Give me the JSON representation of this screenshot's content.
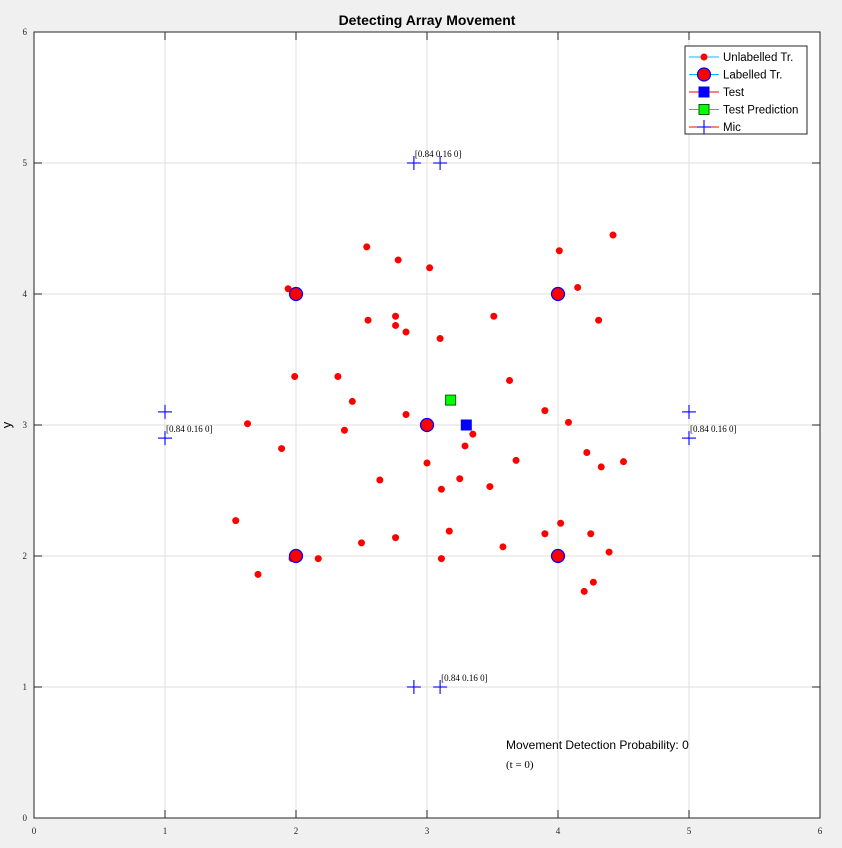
{
  "chart_data": {
    "type": "scatter",
    "title": "Detecting Array Movement",
    "xlabel": "",
    "ylabel": "y",
    "xlim": [
      0,
      6
    ],
    "ylim": [
      0,
      6
    ],
    "xticks": [
      0,
      1,
      2,
      3,
      4,
      5,
      6
    ],
    "yticks": [
      0,
      1,
      2,
      3,
      4,
      5,
      6
    ],
    "grid": true,
    "legend_position": "top-right",
    "series": [
      {
        "name": "Unlabelled Tr.",
        "color": "#ff0000",
        "marker": "dot",
        "points": [
          [
            4.42,
            4.45
          ],
          [
            2.54,
            4.36
          ],
          [
            4.01,
            4.33
          ],
          [
            2.78,
            4.26
          ],
          [
            3.02,
            4.2
          ],
          [
            4.15,
            4.05
          ],
          [
            1.94,
            4.04
          ],
          [
            3.51,
            3.83
          ],
          [
            2.76,
            3.83
          ],
          [
            2.55,
            3.8
          ],
          [
            4.31,
            3.8
          ],
          [
            2.76,
            3.76
          ],
          [
            2.84,
            3.71
          ],
          [
            3.1,
            3.66
          ],
          [
            1.99,
            3.37
          ],
          [
            2.32,
            3.37
          ],
          [
            3.63,
            3.34
          ],
          [
            2.43,
            3.18
          ],
          [
            3.9,
            3.11
          ],
          [
            2.84,
            3.08
          ],
          [
            4.08,
            3.02
          ],
          [
            1.63,
            3.01
          ],
          [
            2.37,
            2.96
          ],
          [
            3.35,
            2.93
          ],
          [
            3.29,
            2.84
          ],
          [
            1.89,
            2.82
          ],
          [
            4.22,
            2.79
          ],
          [
            3.68,
            2.73
          ],
          [
            4.5,
            2.72
          ],
          [
            3.0,
            2.71
          ],
          [
            4.33,
            2.68
          ],
          [
            2.64,
            2.58
          ],
          [
            3.25,
            2.59
          ],
          [
            3.11,
            2.51
          ],
          [
            3.48,
            2.53
          ],
          [
            1.54,
            2.27
          ],
          [
            4.02,
            2.25
          ],
          [
            3.17,
            2.19
          ],
          [
            3.9,
            2.17
          ],
          [
            4.25,
            2.17
          ],
          [
            2.76,
            2.14
          ],
          [
            2.5,
            2.1
          ],
          [
            3.58,
            2.07
          ],
          [
            4.39,
            2.03
          ],
          [
            1.97,
            1.98
          ],
          [
            2.17,
            1.98
          ],
          [
            3.11,
            1.98
          ],
          [
            1.71,
            1.86
          ],
          [
            4.27,
            1.8
          ],
          [
            4.2,
            1.73
          ]
        ]
      },
      {
        "name": "Labelled Tr.",
        "color": "#ff0000",
        "edge": "#0000ff",
        "marker": "circle",
        "points": [
          [
            2,
            4
          ],
          [
            4,
            4
          ],
          [
            3,
            3
          ],
          [
            2,
            2
          ],
          [
            4,
            2
          ]
        ]
      },
      {
        "name": "Test",
        "color": "#0000ff",
        "marker": "square",
        "points": [
          [
            3.3,
            3.0
          ]
        ]
      },
      {
        "name": "Test Prediction",
        "color": "#00ff00",
        "marker": "square",
        "points": [
          [
            3.18,
            3.19
          ]
        ]
      },
      {
        "name": "Mic",
        "color": "#0000ff",
        "marker": "plus",
        "points": [
          [
            2.9,
            5
          ],
          [
            3.1,
            5
          ],
          [
            1,
            3.1
          ],
          [
            1,
            2.9
          ],
          [
            5,
            3.1
          ],
          [
            5,
            2.9
          ],
          [
            2.9,
            1
          ],
          [
            3.1,
            1
          ]
        ]
      }
    ],
    "annotations": [
      {
        "text": "[0.84 0.16 0]",
        "x": 2.9,
        "y": 5
      },
      {
        "text": "[0.84 0.16 0]",
        "x": 1,
        "y": 2.9
      },
      {
        "text": "[0.84 0.16 0]",
        "x": 5,
        "y": 2.9
      },
      {
        "text": "[0.84 0.16 0]",
        "x": 3.1,
        "y": 1
      }
    ],
    "status_text": [
      "Movement Detection Probability: 0",
      "(t = 0)"
    ]
  },
  "legend_line_colors": [
    "#00bfff",
    "#00bfff",
    "#ff0000",
    "#00bfff",
    "#ff0000"
  ]
}
